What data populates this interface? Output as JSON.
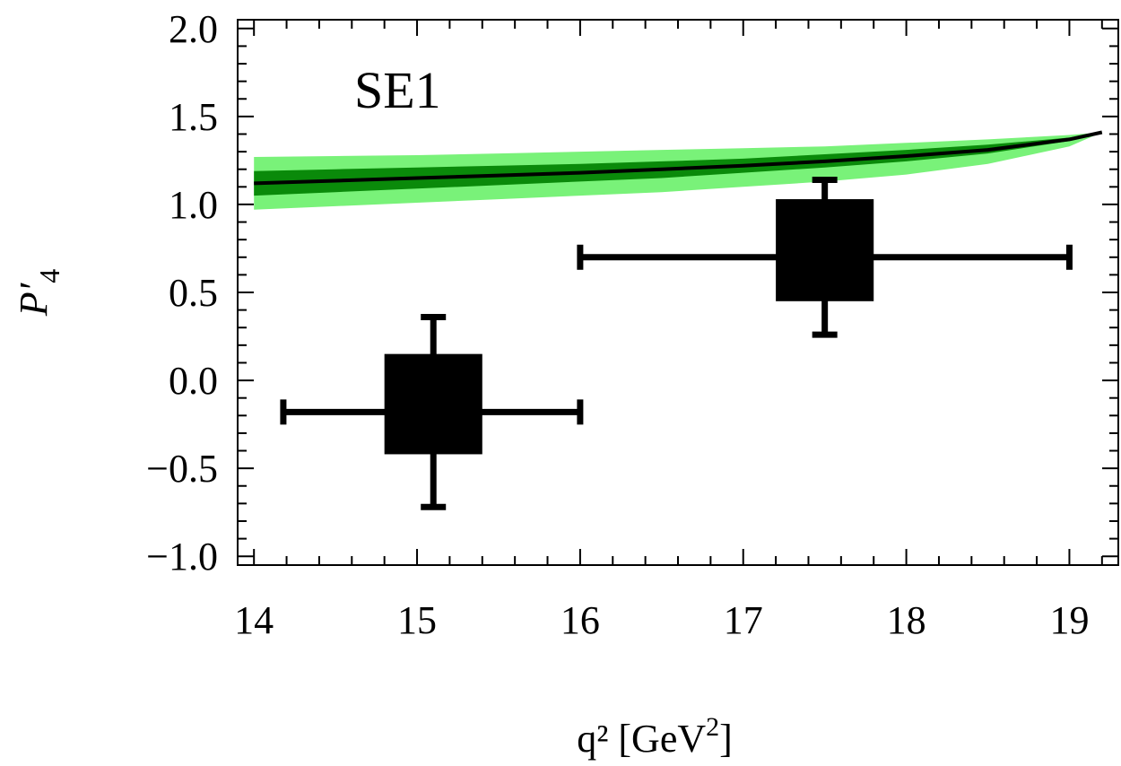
{
  "chart_data": {
    "type": "scatter",
    "panel_label": "SE1",
    "xlabel": {
      "main": "q² [GeV",
      "sup": "2",
      "close": "]"
    },
    "ylabel": {
      "base": "P",
      "prime": "′",
      "sub": "4"
    },
    "xlim": [
      13.9,
      19.3
    ],
    "ylim": [
      -1.05,
      2.05
    ],
    "x_ticks": [
      {
        "value": 14,
        "label": "14"
      },
      {
        "value": 15,
        "label": "15"
      },
      {
        "value": 16,
        "label": "16"
      },
      {
        "value": 17,
        "label": "17"
      },
      {
        "value": 18,
        "label": "18"
      },
      {
        "value": 19,
        "label": "19"
      }
    ],
    "y_ticks": [
      {
        "value": 2.0,
        "label": "2.0"
      },
      {
        "value": 1.5,
        "label": "1.5"
      },
      {
        "value": 1.0,
        "label": "1.0"
      },
      {
        "value": 0.5,
        "label": "0.5"
      },
      {
        "value": 0.0,
        "label": "0.0"
      },
      {
        "value": -0.5,
        "label": "−0.5"
      },
      {
        "value": -1.0,
        "label": "−1.0"
      }
    ],
    "theory_band": {
      "colors": {
        "outer": "#79f279",
        "inner": "#0a8a0a",
        "line": "#000000"
      },
      "q2": [
        14.0,
        14.5,
        15.0,
        15.5,
        16.0,
        16.5,
        17.0,
        17.5,
        18.0,
        18.5,
        19.0,
        19.2
      ],
      "central": [
        1.12,
        1.135,
        1.15,
        1.165,
        1.18,
        1.2,
        1.22,
        1.245,
        1.275,
        1.31,
        1.37,
        1.41
      ],
      "inner_lo": [
        1.05,
        1.07,
        1.09,
        1.11,
        1.13,
        1.15,
        1.18,
        1.21,
        1.245,
        1.29,
        1.36,
        1.41
      ],
      "inner_hi": [
        1.19,
        1.2,
        1.21,
        1.22,
        1.23,
        1.245,
        1.26,
        1.285,
        1.31,
        1.34,
        1.38,
        1.41
      ],
      "outer_lo": [
        0.97,
        0.99,
        1.01,
        1.03,
        1.05,
        1.07,
        1.1,
        1.13,
        1.17,
        1.23,
        1.33,
        1.41
      ],
      "outer_hi": [
        1.27,
        1.275,
        1.28,
        1.29,
        1.3,
        1.31,
        1.32,
        1.33,
        1.35,
        1.37,
        1.395,
        1.41
      ]
    },
    "measurements": [
      {
        "x": 15.1,
        "x_lo": 14.18,
        "x_hi": 16.0,
        "y": -0.18,
        "box_lo": -0.42,
        "box_hi": 0.15,
        "box_x_lo": 14.8,
        "box_x_hi": 15.4,
        "err_lo": -0.72,
        "err_hi": 0.36
      },
      {
        "x": 17.5,
        "x_lo": 16.0,
        "x_hi": 19.0,
        "y": 0.7,
        "box_lo": 0.45,
        "box_hi": 1.03,
        "box_x_lo": 17.2,
        "box_x_hi": 17.8,
        "err_lo": 0.26,
        "err_hi": 1.14
      }
    ]
  }
}
